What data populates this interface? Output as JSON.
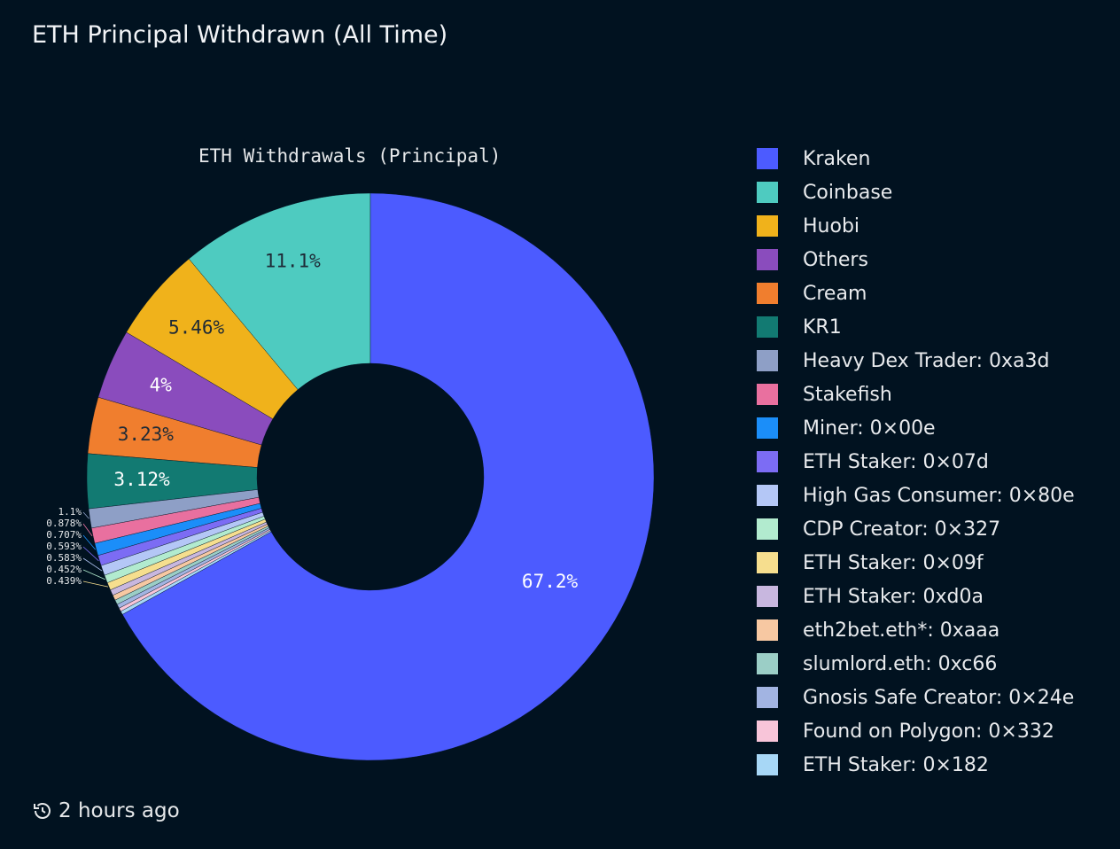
{
  "header": {
    "title": "ETH Principal Withdrawn (All Time)"
  },
  "footer": {
    "updated": "2 hours ago",
    "icon": "history-icon"
  },
  "chart_data": {
    "type": "pie",
    "subtype": "donut",
    "title": "ETH Withdrawals (Principal)",
    "legend_position": "right",
    "slices": [
      {
        "name": "Kraken",
        "value": 67.2,
        "label": "67.2%",
        "color": "#4c5bff"
      },
      {
        "name": "Coinbase",
        "value": 11.1,
        "label": "11.1%",
        "color": "#4ecbc0"
      },
      {
        "name": "Huobi",
        "value": 5.46,
        "label": "5.46%",
        "color": "#f0b21b"
      },
      {
        "name": "Others",
        "value": 4,
        "label": "4%",
        "color": "#8a4cbd"
      },
      {
        "name": "Cream",
        "value": 3.23,
        "label": "3.23%",
        "color": "#f07e2e"
      },
      {
        "name": "KR1",
        "value": 3.12,
        "label": "3.12%",
        "color": "#127a72"
      },
      {
        "name": "Heavy Dex Trader: 0xa3d",
        "value": 1.1,
        "label": "1.1%",
        "color": "#8e9fc6"
      },
      {
        "name": "Stakefish",
        "value": 0.878,
        "label": "0.878%",
        "color": "#e9709f"
      },
      {
        "name": "Miner: 0×00e",
        "value": 0.707,
        "label": "0.707%",
        "color": "#1b8ef9"
      },
      {
        "name": "ETH Staker: 0×07d",
        "value": 0.593,
        "label": "0.593%",
        "color": "#7c6cf4"
      },
      {
        "name": "High Gas Consumer: 0×80e",
        "value": 0.583,
        "label": "0.583%",
        "color": "#b4c7f6"
      },
      {
        "name": "CDP Creator: 0×327",
        "value": 0.452,
        "label": "0.452%",
        "color": "#b2ebcf"
      },
      {
        "name": "ETH Staker: 0×09f",
        "value": 0.439,
        "label": "0.439%",
        "color": "#f6de8e"
      },
      {
        "name": "ETH Staker: 0xd0a",
        "value": 0.33,
        "label": "",
        "color": "#c8b7df"
      },
      {
        "name": "eth2bet.eth*: 0xaaa",
        "value": 0.3,
        "label": "",
        "color": "#f7c8a2"
      },
      {
        "name": "slumlord.eth: 0xc66",
        "value": 0.27,
        "label": "",
        "color": "#9bcec6"
      },
      {
        "name": "Gnosis Safe Creator: 0×24e",
        "value": 0.24,
        "label": "",
        "color": "#a2b4e2"
      },
      {
        "name": "Found on Polygon: 0×332",
        "value": 0.2,
        "label": "",
        "color": "#f8c5d9"
      },
      {
        "name": "ETH Staker: 0×182",
        "value": 0.2,
        "label": "",
        "color": "#a7d7f6"
      }
    ]
  }
}
